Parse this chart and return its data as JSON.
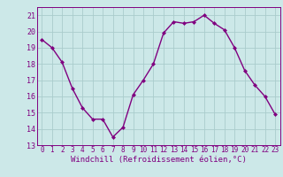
{
  "hours": [
    0,
    1,
    2,
    3,
    4,
    5,
    6,
    7,
    8,
    9,
    10,
    11,
    12,
    13,
    14,
    15,
    16,
    17,
    18,
    19,
    20,
    21,
    22,
    23
  ],
  "values": [
    19.5,
    19.0,
    18.1,
    16.5,
    15.3,
    14.6,
    14.6,
    13.5,
    14.1,
    16.1,
    17.0,
    18.0,
    19.9,
    20.6,
    20.5,
    20.6,
    21.0,
    20.5,
    20.1,
    19.0,
    17.6,
    16.7,
    16.0,
    14.9
  ],
  "line_color": "#800080",
  "marker": "D",
  "marker_size": 2.0,
  "line_width": 1.0,
  "bg_color": "#cce8e8",
  "grid_color": "#aacccc",
  "tick_color": "#800080",
  "xlabel": "Windchill (Refroidissement éolien,°C)",
  "xlabel_fontsize": 6.5,
  "ylim": [
    13,
    21.5
  ],
  "yticks": [
    13,
    14,
    15,
    16,
    17,
    18,
    19,
    20,
    21
  ],
  "xticks": [
    0,
    1,
    2,
    3,
    4,
    5,
    6,
    7,
    8,
    9,
    10,
    11,
    12,
    13,
    14,
    15,
    16,
    17,
    18,
    19,
    20,
    21,
    22,
    23
  ],
  "tick_fontsize": 5.5,
  "ytick_fontsize": 6.0
}
